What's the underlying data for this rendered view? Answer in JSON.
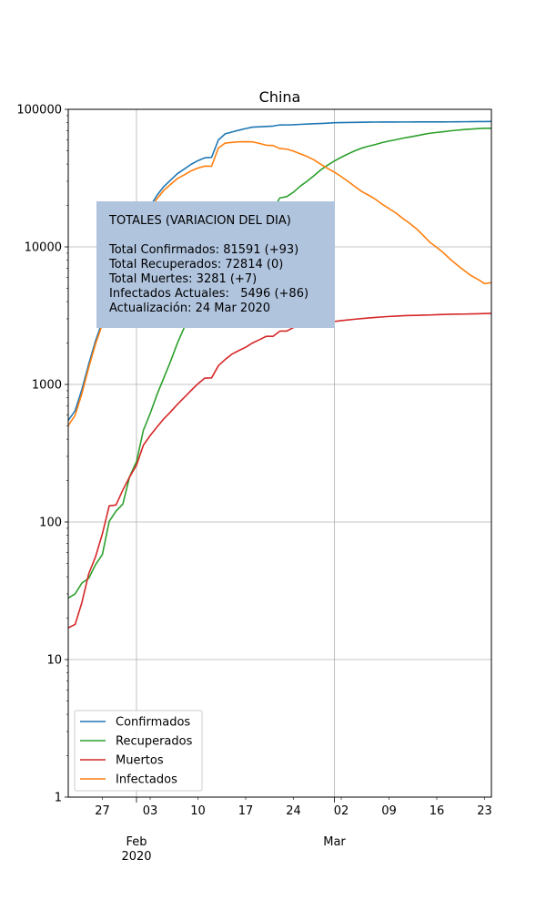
{
  "chart_data": {
    "type": "line",
    "title": "China",
    "xlabel": "",
    "ylabel": "",
    "yscale": "log",
    "ylim": [
      1,
      100000
    ],
    "xlim": [
      "2020-01-22",
      "2020-03-24"
    ],
    "grid": true,
    "yticks": [
      {
        "value": 1,
        "label": "1"
      },
      {
        "value": 10,
        "label": "10"
      },
      {
        "value": 100,
        "label": "100"
      },
      {
        "value": 1000,
        "label": "1000"
      },
      {
        "value": 10000,
        "label": "10000"
      },
      {
        "value": 100000,
        "label": "100000"
      }
    ],
    "xticks_minor": [
      {
        "date": "2020-01-27",
        "label": "27"
      },
      {
        "date": "2020-02-03",
        "label": "03"
      },
      {
        "date": "2020-02-10",
        "label": "10"
      },
      {
        "date": "2020-02-17",
        "label": "17"
      },
      {
        "date": "2020-02-24",
        "label": "24"
      },
      {
        "date": "2020-03-02",
        "label": "02"
      },
      {
        "date": "2020-03-09",
        "label": "09"
      },
      {
        "date": "2020-03-16",
        "label": "16"
      },
      {
        "date": "2020-03-23",
        "label": "23"
      }
    ],
    "xticks_major": [
      {
        "date": "2020-02-01",
        "label": "Feb",
        "sublabel": "2020"
      },
      {
        "date": "2020-03-01",
        "label": "Mar",
        "sublabel": ""
      }
    ],
    "legend": {
      "placement": "lower-left",
      "entries": [
        {
          "name": "Confirmados",
          "color": "#1f77b4"
        },
        {
          "name": "Recuperados",
          "color": "#2ca02c"
        },
        {
          "name": "Muertos",
          "color": "#d62728"
        },
        {
          "name": "Infectados",
          "color": "#ff7f0e"
        }
      ]
    },
    "annotation": {
      "lines": [
        "TOTALES (VARIACION DEL DIA)",
        "",
        "Total Confirmados: 81591 (+93)",
        "Total Recuperados: 72814 (0)",
        "Total Muertes: 3281 (+7)",
        "Infectados Actuales:   5496 (+86)",
        "Actualización: 24 Mar 2020"
      ],
      "background": "#b0c4de"
    },
    "series": [
      {
        "name": "Confirmados",
        "color": "#1f77b4",
        "points": [
          [
            "2020-01-22",
            548
          ],
          [
            "2020-01-23",
            643
          ],
          [
            "2020-01-24",
            920
          ],
          [
            "2020-01-25",
            1406
          ],
          [
            "2020-01-26",
            2075
          ],
          [
            "2020-01-27",
            2877
          ],
          [
            "2020-01-28",
            5509
          ],
          [
            "2020-01-29",
            6087
          ],
          [
            "2020-01-30",
            8141
          ],
          [
            "2020-01-31",
            9802
          ],
          [
            "2020-02-01",
            11891
          ],
          [
            "2020-02-02",
            16630
          ],
          [
            "2020-02-03",
            19716
          ],
          [
            "2020-02-04",
            23707
          ],
          [
            "2020-02-05",
            27440
          ],
          [
            "2020-02-06",
            30587
          ],
          [
            "2020-02-07",
            34110
          ],
          [
            "2020-02-08",
            36814
          ],
          [
            "2020-02-09",
            39829
          ],
          [
            "2020-02-10",
            42354
          ],
          [
            "2020-02-11",
            44386
          ],
          [
            "2020-02-12",
            44759
          ],
          [
            "2020-02-13",
            59895
          ],
          [
            "2020-02-14",
            66358
          ],
          [
            "2020-02-15",
            68413
          ],
          [
            "2020-02-16",
            70513
          ],
          [
            "2020-02-17",
            72434
          ],
          [
            "2020-02-18",
            74211
          ],
          [
            "2020-02-19",
            74619
          ],
          [
            "2020-02-20",
            75077
          ],
          [
            "2020-02-21",
            75550
          ],
          [
            "2020-02-22",
            77001
          ],
          [
            "2020-02-23",
            77022
          ],
          [
            "2020-02-24",
            77241
          ],
          [
            "2020-02-25",
            77754
          ],
          [
            "2020-02-26",
            78166
          ],
          [
            "2020-02-27",
            78600
          ],
          [
            "2020-02-28",
            78928
          ],
          [
            "2020-02-29",
            79356
          ],
          [
            "2020-03-01",
            79932
          ],
          [
            "2020-03-02",
            80136
          ],
          [
            "2020-03-03",
            80261
          ],
          [
            "2020-03-04",
            80386
          ],
          [
            "2020-03-05",
            80537
          ],
          [
            "2020-03-06",
            80690
          ],
          [
            "2020-03-07",
            80770
          ],
          [
            "2020-03-08",
            80823
          ],
          [
            "2020-03-09",
            80860
          ],
          [
            "2020-03-10",
            80887
          ],
          [
            "2020-03-11",
            80921
          ],
          [
            "2020-03-12",
            80932
          ],
          [
            "2020-03-13",
            80945
          ],
          [
            "2020-03-14",
            80977
          ],
          [
            "2020-03-15",
            81003
          ],
          [
            "2020-03-16",
            81033
          ],
          [
            "2020-03-17",
            81058
          ],
          [
            "2020-03-18",
            81102
          ],
          [
            "2020-03-19",
            81156
          ],
          [
            "2020-03-20",
            81250
          ],
          [
            "2020-03-21",
            81305
          ],
          [
            "2020-03-22",
            81435
          ],
          [
            "2020-03-23",
            81498
          ],
          [
            "2020-03-24",
            81591
          ]
        ]
      },
      {
        "name": "Recuperados",
        "color": "#2ca02c",
        "points": [
          [
            "2020-01-22",
            28
          ],
          [
            "2020-01-23",
            30
          ],
          [
            "2020-01-24",
            36
          ],
          [
            "2020-01-25",
            39
          ],
          [
            "2020-01-26",
            49
          ],
          [
            "2020-01-27",
            58
          ],
          [
            "2020-01-28",
            101
          ],
          [
            "2020-01-29",
            120
          ],
          [
            "2020-01-30",
            135
          ],
          [
            "2020-01-31",
            214
          ],
          [
            "2020-02-01",
            275
          ],
          [
            "2020-02-02",
            463
          ],
          [
            "2020-02-03",
            614
          ],
          [
            "2020-02-04",
            843
          ],
          [
            "2020-02-05",
            1115
          ],
          [
            "2020-02-06",
            1477
          ],
          [
            "2020-02-07",
            1999
          ],
          [
            "2020-02-08",
            2596
          ],
          [
            "2020-02-09",
            3219
          ],
          [
            "2020-02-10",
            3918
          ],
          [
            "2020-02-11",
            4636
          ],
          [
            "2020-02-12",
            5082
          ],
          [
            "2020-02-13",
            6217
          ],
          [
            "2020-02-14",
            7977
          ],
          [
            "2020-02-15",
            9298
          ],
          [
            "2020-02-16",
            10755
          ],
          [
            "2020-02-17",
            12462
          ],
          [
            "2020-02-18",
            14206
          ],
          [
            "2020-02-19",
            15962
          ],
          [
            "2020-02-20",
            18014
          ],
          [
            "2020-02-21",
            18704
          ],
          [
            "2020-02-22",
            22699
          ],
          [
            "2020-02-23",
            23170
          ],
          [
            "2020-02-24",
            24990
          ],
          [
            "2020-02-25",
            27650
          ],
          [
            "2020-02-26",
            30053
          ],
          [
            "2020-02-27",
            32898
          ],
          [
            "2020-02-28",
            36291
          ],
          [
            "2020-02-29",
            39279
          ],
          [
            "2020-03-01",
            42118
          ],
          [
            "2020-03-02",
            44810
          ],
          [
            "2020-03-03",
            47404
          ],
          [
            "2020-03-04",
            49955
          ],
          [
            "2020-03-05",
            52240
          ],
          [
            "2020-03-06",
            53888
          ],
          [
            "2020-03-07",
            55478
          ],
          [
            "2020-03-08",
            57320
          ],
          [
            "2020-03-09",
            58735
          ],
          [
            "2020-03-10",
            60106
          ],
          [
            "2020-03-11",
            61644
          ],
          [
            "2020-03-12",
            62901
          ],
          [
            "2020-03-13",
            64196
          ],
          [
            "2020-03-14",
            65660
          ],
          [
            "2020-03-15",
            67017
          ],
          [
            "2020-03-16",
            67910
          ],
          [
            "2020-03-17",
            68798
          ],
          [
            "2020-03-18",
            69755
          ],
          [
            "2020-03-19",
            70535
          ],
          [
            "2020-03-20",
            71266
          ],
          [
            "2020-03-21",
            71857
          ],
          [
            "2020-03-22",
            72362
          ],
          [
            "2020-03-23",
            72814
          ],
          [
            "2020-03-24",
            72814
          ]
        ]
      },
      {
        "name": "Muertos",
        "color": "#d62728",
        "points": [
          [
            "2020-01-22",
            17
          ],
          [
            "2020-01-23",
            18
          ],
          [
            "2020-01-24",
            26
          ],
          [
            "2020-01-25",
            42
          ],
          [
            "2020-01-26",
            56
          ],
          [
            "2020-01-27",
            82
          ],
          [
            "2020-01-28",
            131
          ],
          [
            "2020-01-29",
            133
          ],
          [
            "2020-01-30",
            171
          ],
          [
            "2020-01-31",
            213
          ],
          [
            "2020-02-01",
            259
          ],
          [
            "2020-02-02",
            361
          ],
          [
            "2020-02-03",
            425
          ],
          [
            "2020-02-04",
            490
          ],
          [
            "2020-02-05",
            562
          ],
          [
            "2020-02-06",
            632
          ],
          [
            "2020-02-07",
            717
          ],
          [
            "2020-02-08",
            804
          ],
          [
            "2020-02-09",
            904
          ],
          [
            "2020-02-10",
            1011
          ],
          [
            "2020-02-11",
            1111
          ],
          [
            "2020-02-12",
            1116
          ],
          [
            "2020-02-13",
            1368
          ],
          [
            "2020-02-14",
            1520
          ],
          [
            "2020-02-15",
            1662
          ],
          [
            "2020-02-16",
            1765
          ],
          [
            "2020-02-17",
            1863
          ],
          [
            "2020-02-18",
            2002
          ],
          [
            "2020-02-19",
            2114
          ],
          [
            "2020-02-20",
            2236
          ],
          [
            "2020-02-21",
            2236
          ],
          [
            "2020-02-22",
            2441
          ],
          [
            "2020-02-23",
            2443
          ],
          [
            "2020-02-24",
            2593
          ],
          [
            "2020-02-25",
            2663
          ],
          [
            "2020-02-26",
            2715
          ],
          [
            "2020-02-27",
            2744
          ],
          [
            "2020-02-28",
            2788
          ],
          [
            "2020-02-29",
            2835
          ],
          [
            "2020-03-01",
            2870
          ],
          [
            "2020-03-02",
            2912
          ],
          [
            "2020-03-03",
            2945
          ],
          [
            "2020-03-04",
            2981
          ],
          [
            "2020-03-05",
            3013
          ],
          [
            "2020-03-06",
            3042
          ],
          [
            "2020-03-07",
            3070
          ],
          [
            "2020-03-08",
            3097
          ],
          [
            "2020-03-09",
            3120
          ],
          [
            "2020-03-10",
            3136
          ],
          [
            "2020-03-11",
            3158
          ],
          [
            "2020-03-12",
            3169
          ],
          [
            "2020-03-13",
            3176
          ],
          [
            "2020-03-14",
            3189
          ],
          [
            "2020-03-15",
            3199
          ],
          [
            "2020-03-16",
            3213
          ],
          [
            "2020-03-17",
            3226
          ],
          [
            "2020-03-18",
            3237
          ],
          [
            "2020-03-19",
            3245
          ],
          [
            "2020-03-20",
            3248
          ],
          [
            "2020-03-21",
            3255
          ],
          [
            "2020-03-22",
            3261
          ],
          [
            "2020-03-23",
            3274
          ],
          [
            "2020-03-24",
            3281
          ]
        ]
      },
      {
        "name": "Infectados",
        "color": "#ff7f0e",
        "points": [
          [
            "2020-01-22",
            503
          ],
          [
            "2020-01-23",
            595
          ],
          [
            "2020-01-24",
            858
          ],
          [
            "2020-01-25",
            1325
          ],
          [
            "2020-01-26",
            1970
          ],
          [
            "2020-01-27",
            2737
          ],
          [
            "2020-01-28",
            5277
          ],
          [
            "2020-01-29",
            5834
          ],
          [
            "2020-01-30",
            7835
          ],
          [
            "2020-01-31",
            9375
          ],
          [
            "2020-02-01",
            11357
          ],
          [
            "2020-02-02",
            15806
          ],
          [
            "2020-02-03",
            18677
          ],
          [
            "2020-02-04",
            22374
          ],
          [
            "2020-02-05",
            25763
          ],
          [
            "2020-02-06",
            28478
          ],
          [
            "2020-02-07",
            31394
          ],
          [
            "2020-02-08",
            33414
          ],
          [
            "2020-02-09",
            35706
          ],
          [
            "2020-02-10",
            37425
          ],
          [
            "2020-02-11",
            38639
          ],
          [
            "2020-02-12",
            38561
          ],
          [
            "2020-02-13",
            52310
          ],
          [
            "2020-02-14",
            56861
          ],
          [
            "2020-02-15",
            57453
          ],
          [
            "2020-02-16",
            57993
          ],
          [
            "2020-02-17",
            58109
          ],
          [
            "2020-02-18",
            58003
          ],
          [
            "2020-02-19",
            56543
          ],
          [
            "2020-02-20",
            54827
          ],
          [
            "2020-02-21",
            54610
          ],
          [
            "2020-02-22",
            51861
          ],
          [
            "2020-02-23",
            51409
          ],
          [
            "2020-02-24",
            49658
          ],
          [
            "2020-02-25",
            47441
          ],
          [
            "2020-02-26",
            45398
          ],
          [
            "2020-02-27",
            42958
          ],
          [
            "2020-02-28",
            39849
          ],
          [
            "2020-02-29",
            37242
          ],
          [
            "2020-03-01",
            34944
          ],
          [
            "2020-03-02",
            32414
          ],
          [
            "2020-03-03",
            29912
          ],
          [
            "2020-03-04",
            27450
          ],
          [
            "2020-03-05",
            25284
          ],
          [
            "2020-03-06",
            23760
          ],
          [
            "2020-03-07",
            22222
          ],
          [
            "2020-03-08",
            20406
          ],
          [
            "2020-03-09",
            19005
          ],
          [
            "2020-03-10",
            17645
          ],
          [
            "2020-03-11",
            16119
          ],
          [
            "2020-03-12",
            14862
          ],
          [
            "2020-03-13",
            13573
          ],
          [
            "2020-03-14",
            12128
          ],
          [
            "2020-03-15",
            10787
          ],
          [
            "2020-03-16",
            9910
          ],
          [
            "2020-03-17",
            9034
          ],
          [
            "2020-03-18",
            8110
          ],
          [
            "2020-03-19",
            7376
          ],
          [
            "2020-03-20",
            6736
          ],
          [
            "2020-03-21",
            6193
          ],
          [
            "2020-03-22",
            5812
          ],
          [
            "2020-03-23",
            5410
          ],
          [
            "2020-03-24",
            5496
          ]
        ]
      }
    ]
  }
}
